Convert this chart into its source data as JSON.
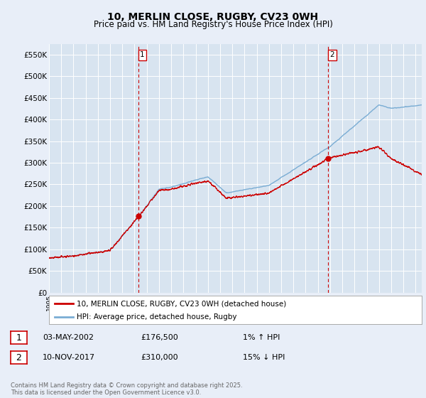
{
  "title": "10, MERLIN CLOSE, RUGBY, CV23 0WH",
  "subtitle": "Price paid vs. HM Land Registry's House Price Index (HPI)",
  "background_color": "#e8eef8",
  "plot_bg_color": "#d8e4f0",
  "grid_color": "#ffffff",
  "hpi_color": "#7aadd4",
  "price_color": "#cc0000",
  "ylim": [
    0,
    575000
  ],
  "yticks": [
    0,
    50000,
    100000,
    150000,
    200000,
    250000,
    300000,
    350000,
    400000,
    450000,
    500000,
    550000
  ],
  "ytick_labels": [
    "£0",
    "£50K",
    "£100K",
    "£150K",
    "£200K",
    "£250K",
    "£300K",
    "£350K",
    "£400K",
    "£450K",
    "£500K",
    "£550K"
  ],
  "xmin": 1995.0,
  "xmax": 2025.5,
  "purchase1_date": 2002.34,
  "purchase1_price": 176500,
  "purchase1_label": "1",
  "purchase2_date": 2017.86,
  "purchase2_price": 310000,
  "purchase2_label": "2",
  "vline1_x": 2002.34,
  "vline2_x": 2017.86,
  "legend_line1": "10, MERLIN CLOSE, RUGBY, CV23 0WH (detached house)",
  "legend_line2": "HPI: Average price, detached house, Rugby",
  "note1_label": "1",
  "note1_date": "03-MAY-2002",
  "note1_price": "£176,500",
  "note1_hpi": "1% ↑ HPI",
  "note2_label": "2",
  "note2_date": "10-NOV-2017",
  "note2_price": "£310,000",
  "note2_hpi": "15% ↓ HPI",
  "footer": "Contains HM Land Registry data © Crown copyright and database right 2025.\nThis data is licensed under the Open Government Licence v3.0."
}
